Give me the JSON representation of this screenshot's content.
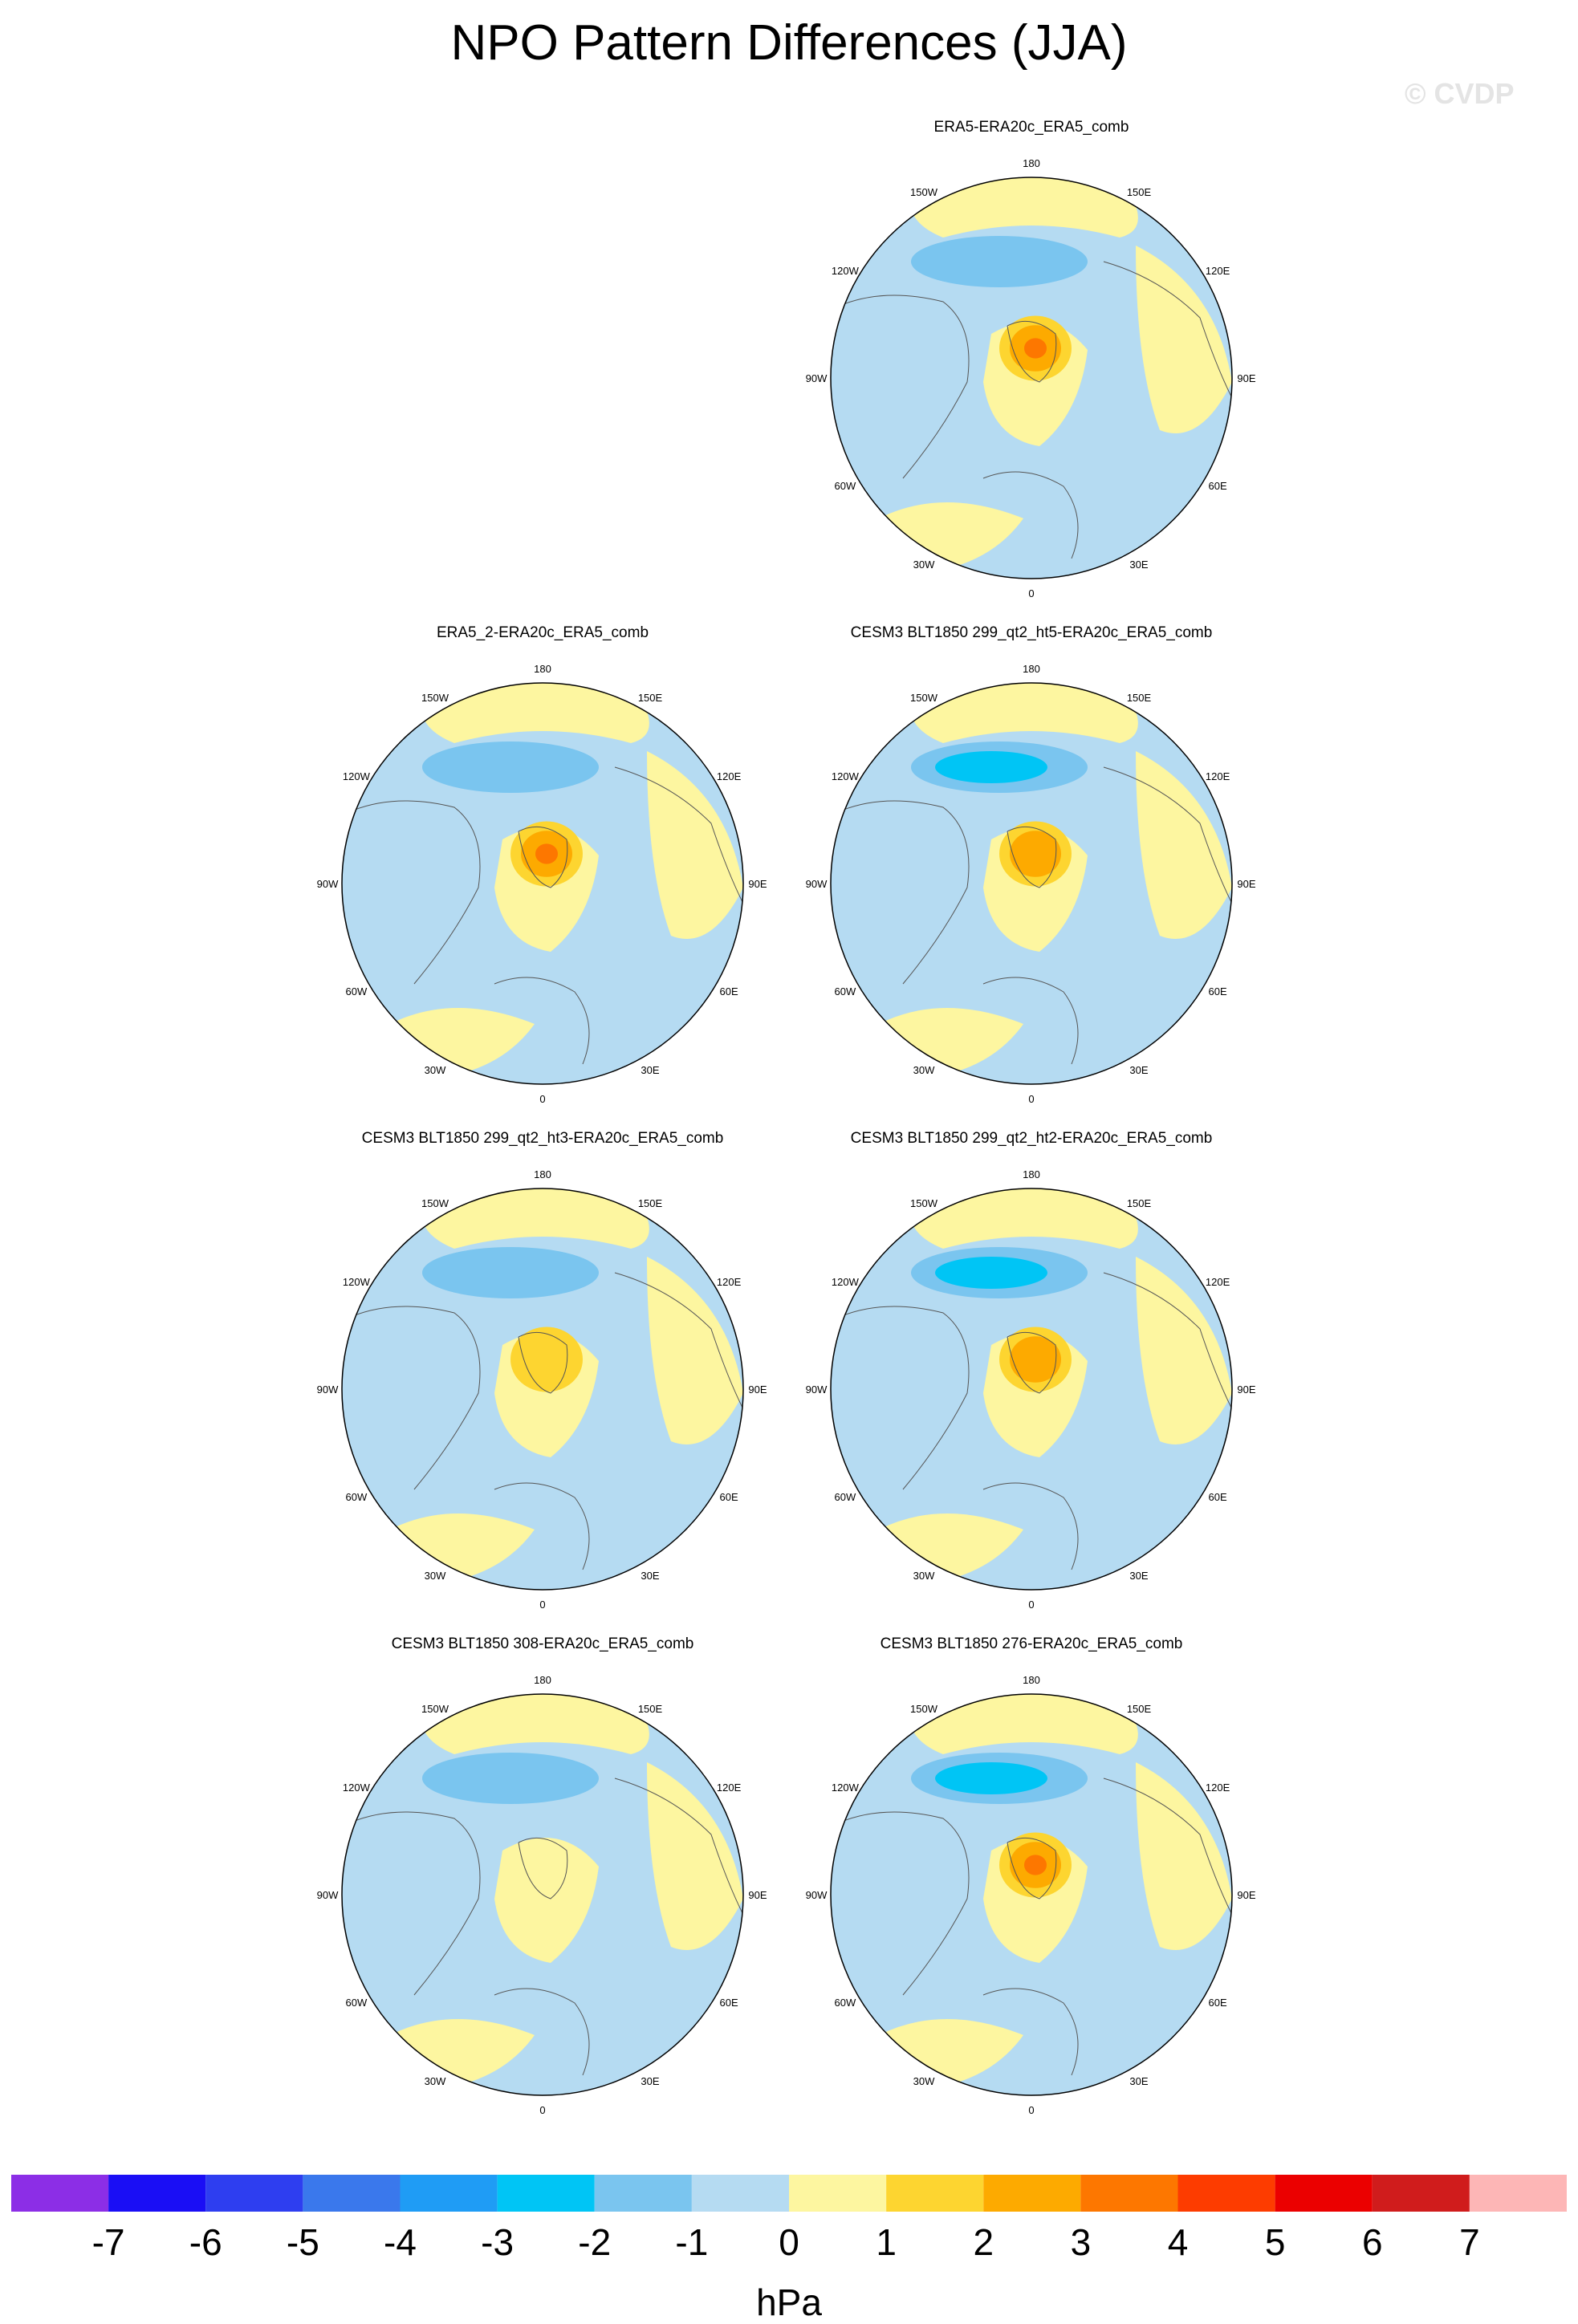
{
  "title": "NPO Pattern Differences (JJA)",
  "watermark": "© CVDP",
  "colors": {
    "ocean_neg1": "#b5dbf2",
    "land_pos1": "#fdf6a0",
    "neg2": "#7ac5ef",
    "neg3": "#00c5f5",
    "pos2": "#fdd530",
    "pos3": "#fdaa00",
    "pos4": "#fd7700",
    "coast": "#555555"
  },
  "longitude_labels": [
    "180",
    "150E",
    "120E",
    "90E",
    "60E",
    "30E",
    "0",
    "30W",
    "60W",
    "90W",
    "120W",
    "150W"
  ],
  "panels": [
    {
      "id": "era5",
      "title": "ERA5-ERA20c_ERA5_comb",
      "max_level": 4,
      "min_level": -2
    },
    {
      "id": "era5_2",
      "title": "ERA5_2-ERA20c_ERA5_comb",
      "max_level": 4,
      "min_level": -2
    },
    {
      "id": "ht5",
      "title": "CESM3 BLT1850 299_qt2_ht5-ERA20c_ERA5_comb",
      "max_level": 3,
      "min_level": -3
    },
    {
      "id": "ht3",
      "title": "CESM3 BLT1850 299_qt2_ht3-ERA20c_ERA5_comb",
      "max_level": 2,
      "min_level": -2
    },
    {
      "id": "ht2",
      "title": "CESM3 BLT1850 299_qt2_ht2-ERA20c_ERA5_comb",
      "max_level": 3,
      "min_level": -3
    },
    {
      "id": "r308",
      "title": "CESM3 BLT1850 308-ERA20c_ERA5_comb",
      "max_level": 1,
      "min_level": -2
    },
    {
      "id": "r276",
      "title": "CESM3 BLT1850 276-ERA20c_ERA5_comb",
      "max_level": 4,
      "min_level": -3
    }
  ],
  "colorbar": {
    "units": "hPa",
    "ticks": [
      "-7",
      "-6",
      "-5",
      "-4",
      "-3",
      "-2",
      "-1",
      "0",
      "1",
      "2",
      "3",
      "4",
      "5",
      "6",
      "7"
    ],
    "colors": [
      "#8c2ee6",
      "#1a0ef5",
      "#2e3ef0",
      "#3a78ec",
      "#1f9cf5",
      "#00c5f5",
      "#7ac5ef",
      "#b5dbf2",
      "#fdf6a0",
      "#fdd530",
      "#fdaa00",
      "#fd7700",
      "#fd3c00",
      "#eb0000",
      "#d01c1c",
      "#fdb6b6"
    ]
  }
}
